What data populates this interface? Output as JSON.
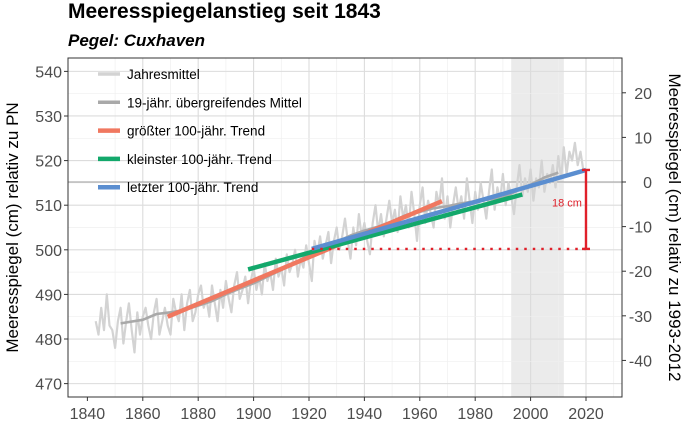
{
  "chart_data": {
    "type": "line",
    "title": "Meeresspiegelanstieg seit 1843",
    "subtitle": "Pegel: Cuxhaven",
    "xlabel": "",
    "ylabel": "Meeresspiegel (cm) relativ zu PN",
    "ylabel_right": "Meeresspiegel (cm) relativ zu 1993-2012",
    "xlim": [
      1833,
      2033
    ],
    "ylim": [
      467,
      543
    ],
    "x_ticks": [
      1840,
      1860,
      1880,
      1900,
      1920,
      1940,
      1960,
      1980,
      2000,
      2020
    ],
    "y_ticks": [
      470,
      480,
      490,
      500,
      510,
      520,
      530,
      540
    ],
    "y_ticks_right": [
      -40,
      -30,
      -20,
      -10,
      0,
      10,
      20
    ],
    "right_axis_offset": 515.2,
    "reference_period": [
      1993,
      2012
    ],
    "grid": true,
    "legend_position": "top-left",
    "colors": {
      "annual": "#d3d3d3",
      "moving": "#a9a9a9",
      "max_trend": "#f07860",
      "min_trend": "#13a86b",
      "last_trend": "#5b8ed0",
      "annotation": "#e0202a",
      "reference_band": "#ebebeb",
      "zero_line": "#999999"
    },
    "series": [
      {
        "name": "Jahresmittel",
        "x": [
          1843,
          1844,
          1845,
          1846,
          1847,
          1848,
          1849,
          1850,
          1851,
          1852,
          1853,
          1854,
          1855,
          1856,
          1857,
          1858,
          1859,
          1860,
          1861,
          1862,
          1863,
          1864,
          1865,
          1866,
          1867,
          1868,
          1869,
          1870,
          1871,
          1872,
          1873,
          1874,
          1875,
          1876,
          1877,
          1878,
          1879,
          1880,
          1881,
          1882,
          1883,
          1884,
          1885,
          1886,
          1887,
          1888,
          1889,
          1890,
          1891,
          1892,
          1893,
          1894,
          1895,
          1896,
          1897,
          1898,
          1899,
          1900,
          1901,
          1902,
          1903,
          1904,
          1905,
          1906,
          1907,
          1908,
          1909,
          1910,
          1911,
          1912,
          1913,
          1914,
          1915,
          1916,
          1917,
          1918,
          1919,
          1920,
          1921,
          1922,
          1923,
          1924,
          1925,
          1926,
          1927,
          1928,
          1929,
          1930,
          1931,
          1932,
          1933,
          1934,
          1935,
          1936,
          1937,
          1938,
          1939,
          1940,
          1941,
          1942,
          1943,
          1944,
          1945,
          1946,
          1947,
          1948,
          1949,
          1950,
          1951,
          1952,
          1953,
          1954,
          1955,
          1956,
          1957,
          1958,
          1959,
          1960,
          1961,
          1962,
          1963,
          1964,
          1965,
          1966,
          1967,
          1968,
          1969,
          1970,
          1971,
          1972,
          1973,
          1974,
          1975,
          1976,
          1977,
          1978,
          1979,
          1980,
          1981,
          1982,
          1983,
          1984,
          1985,
          1986,
          1987,
          1988,
          1989,
          1990,
          1991,
          1992,
          1993,
          1994,
          1995,
          1996,
          1997,
          1998,
          1999,
          2000,
          2001,
          2002,
          2003,
          2004,
          2005,
          2006,
          2007,
          2008,
          2009,
          2010,
          2011,
          2012,
          2013,
          2014,
          2015,
          2016,
          2017,
          2018,
          2019
        ],
        "values": [
          484,
          481,
          487,
          482,
          490,
          483,
          482,
          478,
          484,
          487,
          479,
          484,
          488,
          482,
          477,
          486,
          481,
          485,
          487,
          483,
          480,
          486,
          489,
          481,
          484,
          487,
          483,
          481,
          489,
          486,
          484,
          490,
          482,
          488,
          491,
          484,
          486,
          490,
          492,
          487,
          489,
          485,
          492,
          488,
          484,
          491,
          487,
          493,
          489,
          486,
          492,
          495,
          489,
          491,
          494,
          488,
          493,
          496,
          491,
          494,
          490,
          497,
          493,
          495,
          491,
          498,
          494,
          496,
          492,
          499,
          495,
          497,
          500,
          494,
          498,
          496,
          501,
          497,
          493,
          502,
          499,
          503,
          498,
          501,
          504,
          497,
          502,
          505,
          500,
          503,
          507,
          502,
          498,
          505,
          501,
          508,
          503,
          506,
          502,
          499,
          506,
          510,
          504,
          508,
          503,
          507,
          511,
          506,
          509,
          504,
          512,
          507,
          510,
          505,
          513,
          508,
          502,
          510,
          514,
          506,
          511,
          508,
          505,
          513,
          510,
          516,
          507,
          512,
          505,
          510,
          514,
          509,
          512,
          507,
          516,
          511,
          506,
          513,
          509,
          515,
          511,
          507,
          513,
          518,
          509,
          514,
          511,
          517,
          510,
          515,
          512,
          508,
          514,
          519,
          512,
          516,
          513,
          518,
          511,
          516,
          514,
          520,
          513,
          517,
          515,
          519,
          514,
          521,
          516,
          523,
          517,
          522,
          520,
          524,
          519,
          522,
          518
        ]
      },
      {
        "name": "19-jähr. übergreifendes Mittel",
        "x": [
          1852,
          1860,
          1865,
          1870,
          1875,
          1880,
          1885,
          1890,
          1895,
          1900,
          1905,
          1910,
          1915,
          1920,
          1925,
          1930,
          1935,
          1940,
          1945,
          1950,
          1955,
          1960,
          1965,
          1970,
          1975,
          1980,
          1985,
          1990,
          1995,
          2000,
          2005,
          2010
        ],
        "values": [
          483.5,
          484.3,
          485.6,
          486.0,
          486.5,
          487.5,
          488.5,
          490.0,
          491.3,
          492.5,
          494.0,
          495.5,
          497.0,
          499.0,
          500.5,
          501.8,
          503.2,
          504.3,
          505.2,
          506.4,
          507.8,
          508.5,
          509.3,
          509.8,
          510.4,
          510.9,
          511.3,
          511.7,
          513.2,
          514.6,
          516.2,
          517.3
        ]
      },
      {
        "name": "größter 100-jähr. Trend",
        "x": [
          1869,
          1968
        ],
        "values": [
          485.0,
          510.9
        ]
      },
      {
        "name": "kleinster 100-jähr. Trend",
        "x": [
          1898,
          1997
        ],
        "values": [
          495.6,
          512.4
        ]
      },
      {
        "name": "letzter 100-jähr. Trend",
        "x": [
          1921,
          2020
        ],
        "values": [
          500.2,
          517.9
        ]
      }
    ],
    "annotation": {
      "label": "18 cm",
      "x": 2020,
      "y_low": 500.2,
      "y_high": 517.9,
      "dotted_from_x": 1921
    }
  }
}
